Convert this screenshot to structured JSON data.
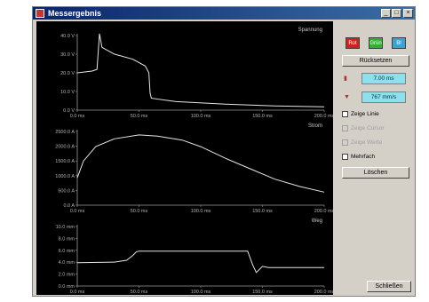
{
  "window": {
    "title": "Messergebnis"
  },
  "titlebar_buttons": {
    "minimize": "_",
    "maximize": "□",
    "close": "×"
  },
  "colors": {
    "series_line": "#e6e6e6",
    "plot_background": "#000000",
    "red_button": "#d02020",
    "green_button": "#30b030",
    "blue_button": "#40a0d0",
    "readout": "#8ee0ec"
  },
  "plots": [
    {
      "title": "Spannung",
      "y_ticks": [
        "40.0 V",
        "30.0 V",
        "20.0 V",
        "10.0 V",
        "0.0 V"
      ],
      "x_ticks": [
        "0.0 ms",
        "50.0 ms",
        "100.0 ms",
        "150.0 ms",
        "200.0 ms"
      ]
    },
    {
      "title": "Strom",
      "y_ticks": [
        "2500.0 A",
        "2000.0 A",
        "1500.0 A",
        "1000.0 A",
        "500.0 A",
        "0.0 A"
      ],
      "x_ticks": [
        "0.0 ms",
        "50.0 ms",
        "100.0 ms",
        "150.0 ms",
        "200.0 ms"
      ]
    },
    {
      "title": "Weg",
      "y_ticks": [
        "10.0 mm",
        "8.0 mm",
        "6.0 mm",
        "4.0 mm",
        "2.0 mm",
        "0.0 mm"
      ],
      "x_ticks": [
        "0.0 ms",
        "50.0 ms",
        "100.0 ms",
        "150.0 ms",
        "200.0 ms"
      ]
    }
  ],
  "chart_data": [
    {
      "type": "line",
      "title": "Spannung",
      "xlabel": "",
      "ylabel": "",
      "xlim": [
        0,
        200
      ],
      "ylim": [
        0,
        45
      ],
      "series": [
        {
          "x": [
            0,
            12,
            16,
            18,
            20,
            30,
            45,
            55,
            58,
            59,
            60,
            80,
            120,
            160,
            200
          ],
          "y": [
            22,
            23,
            24,
            45,
            37,
            33,
            30,
            26,
            22,
            10,
            7,
            5,
            3.5,
            2.5,
            2
          ]
        }
      ]
    },
    {
      "type": "line",
      "title": "Strom",
      "xlabel": "",
      "ylabel": "",
      "xlim": [
        0,
        200
      ],
      "ylim": [
        0,
        2900
      ],
      "series": [
        {
          "x": [
            0,
            5,
            15,
            30,
            50,
            65,
            85,
            100,
            120,
            140,
            160,
            180,
            200
          ],
          "y": [
            1050,
            1700,
            2250,
            2550,
            2700,
            2650,
            2500,
            2250,
            1800,
            1400,
            1000,
            720,
            500
          ]
        }
      ]
    },
    {
      "type": "line",
      "title": "Weg",
      "xlabel": "",
      "ylabel": "",
      "xlim": [
        0,
        200
      ],
      "ylim": [
        0,
        10
      ],
      "series": [
        {
          "x": [
            0,
            30,
            40,
            45,
            48,
            50,
            100,
            138,
            142,
            145,
            150,
            155,
            170,
            200
          ],
          "y": [
            3.8,
            3.9,
            4.2,
            5,
            5.6,
            5.7,
            5.7,
            5.7,
            3.5,
            2.2,
            3.2,
            3,
            3,
            3
          ]
        }
      ]
    }
  ],
  "panel": {
    "red_label": "Rot",
    "green_label": "Grün",
    "blue_label": "Bl",
    "back_button": "Rücksetzen",
    "cursor1_value": "7.00 ms",
    "cursor2_value": "767 mm/s",
    "check1": "Zeige Linie",
    "check2": "Zeige Cursor",
    "check3": "Zeige Werte",
    "check4": "Mehrfach",
    "delete_button": "Löschen",
    "close_button": "Schließen"
  }
}
